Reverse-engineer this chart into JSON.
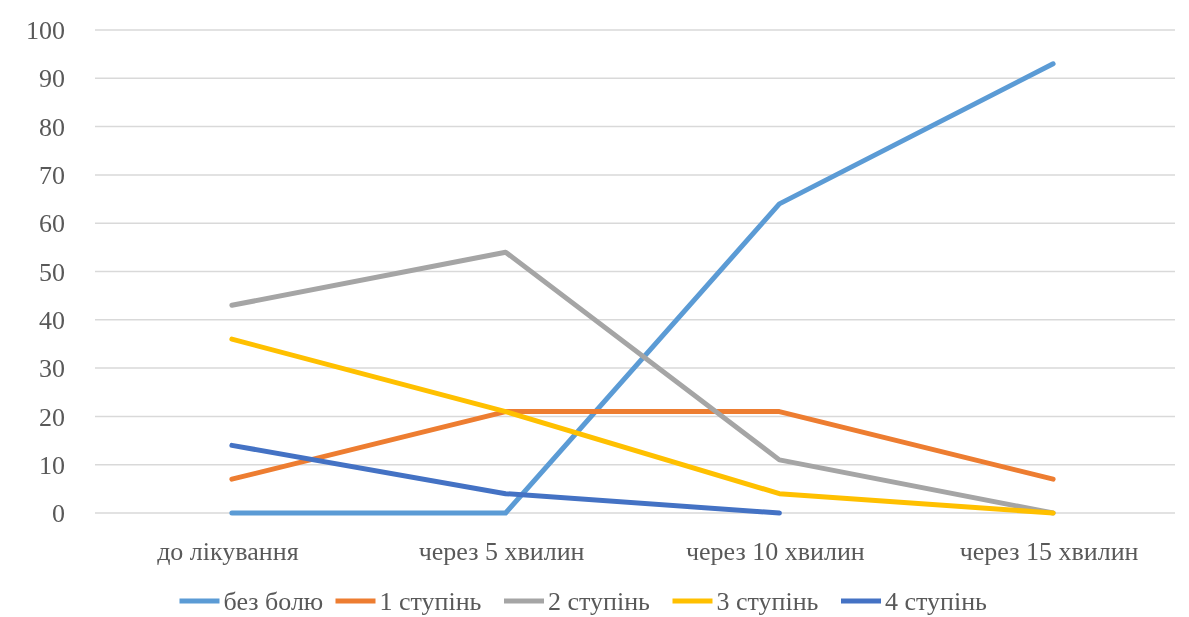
{
  "chart_data": {
    "type": "line",
    "categories": [
      "до лікування",
      "через 5 хвилин",
      "через 10 хвилин",
      "через 15 хвилин"
    ],
    "series": [
      {
        "name": "без болю",
        "color": "#5b9bd5",
        "values": [
          0,
          0,
          64,
          93
        ]
      },
      {
        "name": "1 ступінь",
        "color": "#ed7d31",
        "values": [
          7,
          21,
          21,
          7
        ]
      },
      {
        "name": "2 ступінь",
        "color": "#a5a5a5",
        "values": [
          43,
          54,
          11,
          0
        ]
      },
      {
        "name": "3 ступінь",
        "color": "#ffc000",
        "values": [
          36,
          21,
          4,
          0
        ]
      },
      {
        "name": "4 ступінь",
        "color": "#4472c4",
        "values": [
          14,
          4,
          0,
          null
        ]
      }
    ],
    "ylim": [
      0,
      100
    ],
    "yticks": [
      0,
      10,
      20,
      30,
      40,
      50,
      60,
      70,
      80,
      90,
      100
    ],
    "grid": "y",
    "legend": "bottom",
    "marker": "none",
    "line_style": "solid"
  }
}
